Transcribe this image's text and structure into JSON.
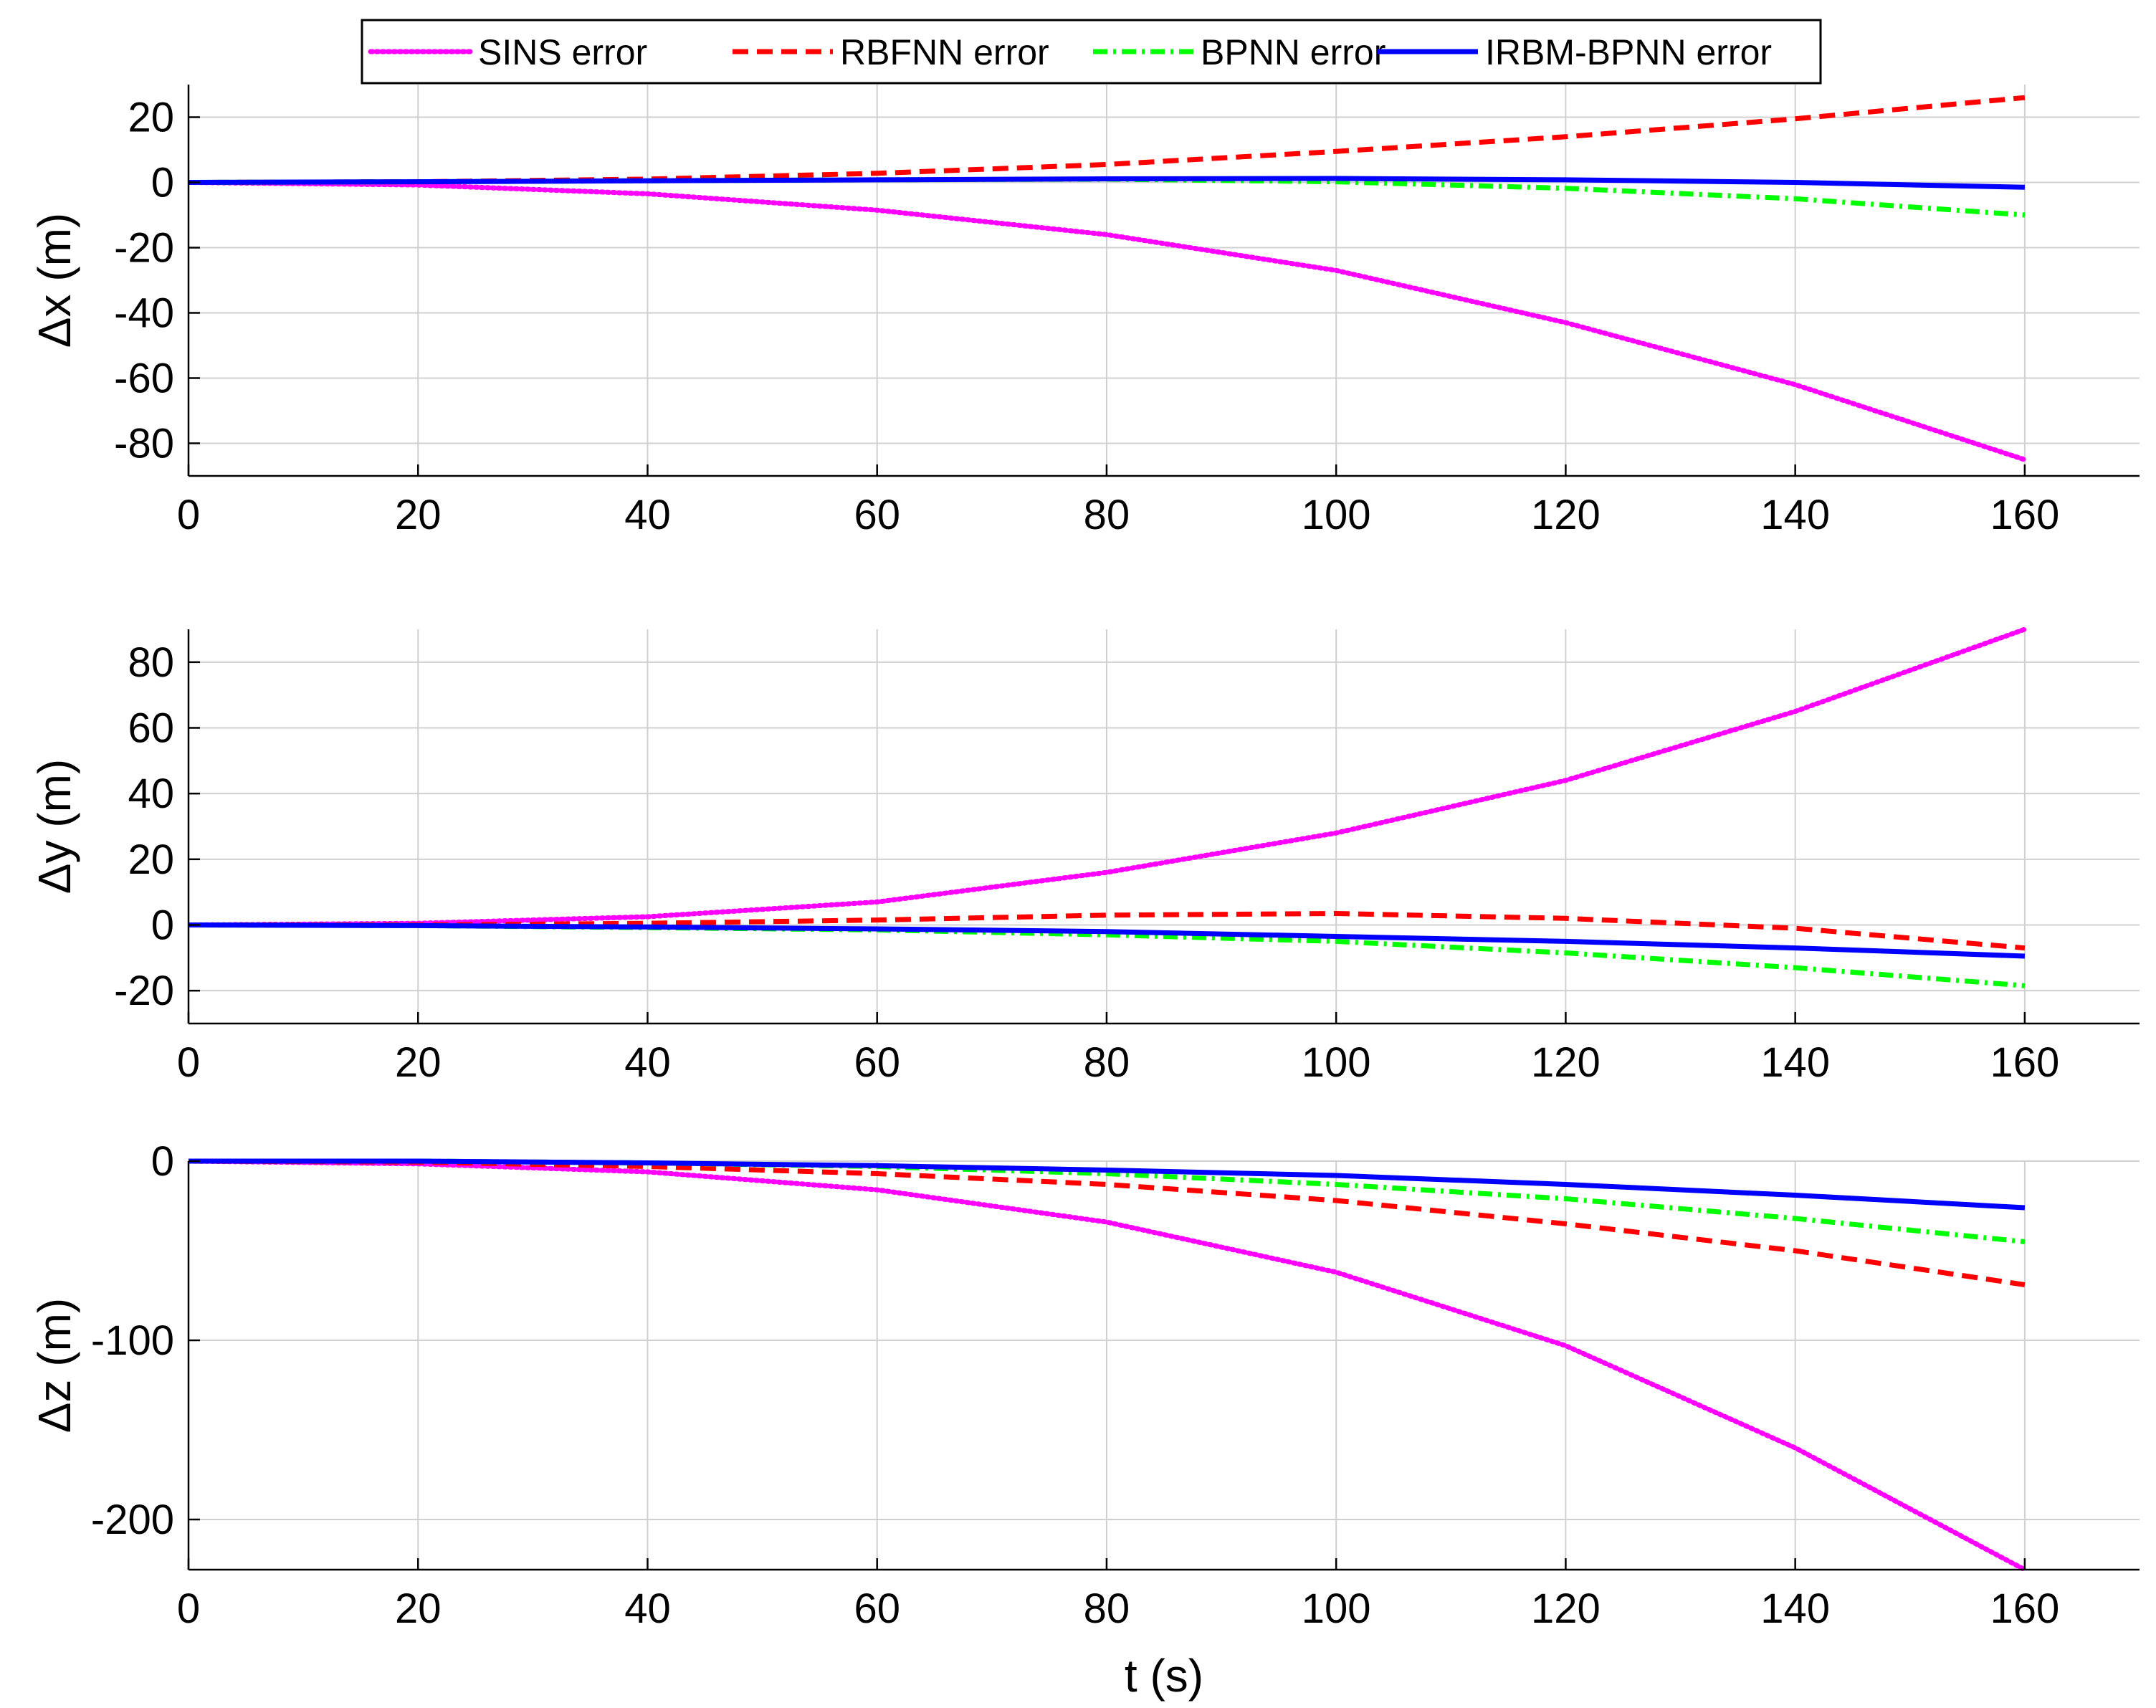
{
  "chart_data": [
    {
      "type": "line",
      "ylabel": "Δx (m)",
      "xlabel": "",
      "xlim": [
        0,
        170
      ],
      "ylim": [
        -90,
        30
      ],
      "xticks": [
        0,
        20,
        40,
        60,
        80,
        100,
        120,
        140,
        160
      ],
      "yticks": [
        20,
        0,
        -20,
        -40,
        -60,
        -80
      ],
      "grid": true,
      "x": [
        0,
        20,
        40,
        60,
        80,
        100,
        120,
        140,
        160
      ],
      "series": [
        {
          "name": "SINS error",
          "values": [
            0,
            -0.8,
            -3.5,
            -8.5,
            -16,
            -27,
            -43,
            -62,
            -85
          ]
        },
        {
          "name": "RBFNN error",
          "values": [
            0,
            0.2,
            1,
            2.8,
            5.5,
            9.5,
            14,
            19.5,
            26
          ]
        },
        {
          "name": "BPNN error",
          "values": [
            0,
            0.2,
            0.5,
            0.8,
            1,
            0.2,
            -1.8,
            -5,
            -10
          ]
        },
        {
          "name": "IRBM-BPNN error",
          "values": [
            0,
            0.2,
            0.5,
            0.8,
            1.1,
            1.2,
            0.8,
            0,
            -1.5
          ]
        }
      ]
    },
    {
      "type": "line",
      "ylabel": "Δy (m)",
      "xlabel": "",
      "xlim": [
        0,
        170
      ],
      "ylim": [
        -30,
        90
      ],
      "xticks": [
        0,
        20,
        40,
        60,
        80,
        100,
        120,
        140,
        160
      ],
      "yticks": [
        80,
        60,
        40,
        20,
        0,
        -20
      ],
      "grid": true,
      "x": [
        0,
        20,
        40,
        60,
        80,
        100,
        120,
        140,
        160
      ],
      "series": [
        {
          "name": "SINS error",
          "values": [
            0,
            0.5,
            2.5,
            7,
            16,
            28,
            44,
            65,
            90
          ]
        },
        {
          "name": "RBFNN error",
          "values": [
            0,
            0,
            0.5,
            1.5,
            3,
            3.5,
            2,
            -1,
            -7
          ]
        },
        {
          "name": "BPNN error",
          "values": [
            0,
            -0.2,
            -0.8,
            -1.5,
            -3,
            -5,
            -8.5,
            -13,
            -18.5
          ]
        },
        {
          "name": "IRBM-BPNN error",
          "values": [
            0,
            -0.2,
            -0.6,
            -1.2,
            -2,
            -3.5,
            -5,
            -7,
            -9.5
          ]
        }
      ]
    },
    {
      "type": "line",
      "ylabel": "Δz (m)",
      "xlabel": "t (s)",
      "xlim": [
        0,
        170
      ],
      "ylim": [
        -228,
        0
      ],
      "xticks": [
        0,
        20,
        40,
        60,
        80,
        100,
        120,
        140,
        160
      ],
      "yticks": [
        0,
        -100,
        -200
      ],
      "grid": true,
      "x": [
        0,
        20,
        40,
        60,
        80,
        100,
        120,
        140,
        160
      ],
      "series": [
        {
          "name": "SINS error",
          "values": [
            0,
            -1.5,
            -6,
            -16,
            -34,
            -62,
            -103,
            -160,
            -228
          ]
        },
        {
          "name": "RBFNN error",
          "values": [
            0,
            -0.5,
            -3,
            -7,
            -13,
            -22,
            -35,
            -50,
            -69
          ]
        },
        {
          "name": "BPNN error",
          "values": [
            0,
            0,
            -1,
            -3,
            -7,
            -13,
            -21,
            -32,
            -45
          ]
        },
        {
          "name": "IRBM-BPNN error",
          "values": [
            0,
            0,
            -1,
            -2.5,
            -5,
            -8,
            -13,
            -19,
            -26
          ]
        }
      ]
    }
  ],
  "legend": {
    "placement": "top-center",
    "entries": [
      "SINS error",
      "RBFNN error",
      "BPNN error",
      "IRBM-BPNN error"
    ]
  },
  "styles": {
    "SINS error": {
      "color": "#ff00ff",
      "dash": "dotted"
    },
    "RBFNN error": {
      "color": "#ff0000",
      "dash": "dashed"
    },
    "BPNN error": {
      "color": "#00ff00",
      "dash": "dashdot"
    },
    "IRBM-BPNN error": {
      "color": "#0000ff",
      "dash": "solid"
    }
  }
}
